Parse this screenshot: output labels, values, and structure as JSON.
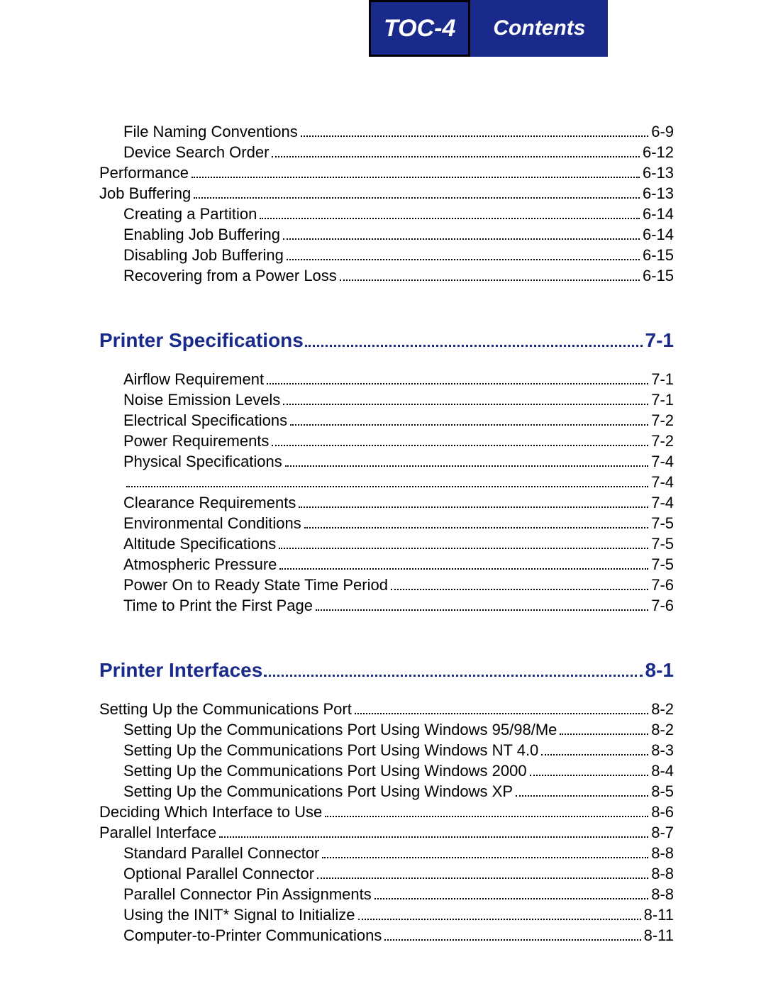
{
  "header": {
    "toc_label": "TOC-4",
    "contents_label": "Contents"
  },
  "colors": {
    "header_bg": "#1a2a8a",
    "header_border": "#000000",
    "header_text": "#ffffff",
    "section_color": "#1a2a8a",
    "body_text": "#000000",
    "page_bg": "#ffffff"
  },
  "typography": {
    "body_fontsize": 22,
    "section_fontsize": 28,
    "header_toc_fontsize": 34,
    "header_contents_fontsize": 30
  },
  "pre_entries": [
    {
      "level": 1,
      "label": "File Naming Conventions",
      "page": "6-9"
    },
    {
      "level": 1,
      "label": "Device Search Order",
      "page": "6-12"
    },
    {
      "level": 0,
      "label": "Performance",
      "page": "6-13"
    },
    {
      "level": 0,
      "label": "Job Buffering",
      "page": "6-13"
    },
    {
      "level": 1,
      "label": "Creating a Partition",
      "page": "6-14"
    },
    {
      "level": 1,
      "label": "Enabling Job Buffering",
      "page": "6-14"
    },
    {
      "level": 1,
      "label": "Disabling Job Buffering",
      "page": "6-15"
    },
    {
      "level": 1,
      "label": "Recovering from a Power Loss",
      "page": "6-15"
    }
  ],
  "sections": [
    {
      "title": "Printer Specifications",
      "page": "7-1",
      "entries": [
        {
          "level": 1,
          "label": "Airflow Requirement",
          "page": "7-1"
        },
        {
          "level": 1,
          "label": "Noise Emission Levels",
          "page": "7-1"
        },
        {
          "level": 1,
          "label": "Electrical Specifications",
          "page": "7-2"
        },
        {
          "level": 1,
          "label": "Power Requirements",
          "page": "7-2"
        },
        {
          "level": 1,
          "label": "Physical Specifications",
          "page": "7-4"
        },
        {
          "level": 1,
          "label": "",
          "page": "7-4"
        },
        {
          "level": 1,
          "label": "Clearance Requirements",
          "page": "7-4"
        },
        {
          "level": 1,
          "label": "Environmental Conditions",
          "page": "7-5"
        },
        {
          "level": 1,
          "label": "Altitude Specifications",
          "page": "7-5"
        },
        {
          "level": 1,
          "label": "Atmospheric Pressure",
          "page": "7-5"
        },
        {
          "level": 1,
          "label": "Power On to Ready State Time Period",
          "page": "7-6"
        },
        {
          "level": 1,
          "label": "Time to Print the First Page",
          "page": "7-6"
        }
      ]
    },
    {
      "title": "Printer Interfaces",
      "page": "8-1",
      "entries": [
        {
          "level": 0,
          "label": "Setting Up the Communications Port",
          "page": "8-2"
        },
        {
          "level": 1,
          "label": "Setting Up the Communications Port Using Windows 95/98/Me",
          "page": "8-2"
        },
        {
          "level": 1,
          "label": "Setting Up the Communications Port Using Windows NT 4.0",
          "page": "8-3"
        },
        {
          "level": 1,
          "label": "Setting Up the Communications Port Using Windows 2000",
          "page": "8-4"
        },
        {
          "level": 1,
          "label": "Setting Up the Communications Port Using Windows XP",
          "page": "8-5"
        },
        {
          "level": 0,
          "label": "Deciding Which Interface to Use",
          "page": "8-6"
        },
        {
          "level": 0,
          "label": "Parallel Interface",
          "page": "8-7"
        },
        {
          "level": 1,
          "label": "Standard Parallel Connector",
          "page": "8-8"
        },
        {
          "level": 1,
          "label": "Optional Parallel Connector",
          "page": "8-8"
        },
        {
          "level": 1,
          "label": "Parallel Connector Pin Assignments",
          "page": "8-8"
        },
        {
          "level": 1,
          "label": "Using the INIT* Signal to Initialize",
          "page": "8-11"
        },
        {
          "level": 1,
          "label": "Computer-to-Printer Communications",
          "page": "8-11"
        }
      ]
    }
  ]
}
